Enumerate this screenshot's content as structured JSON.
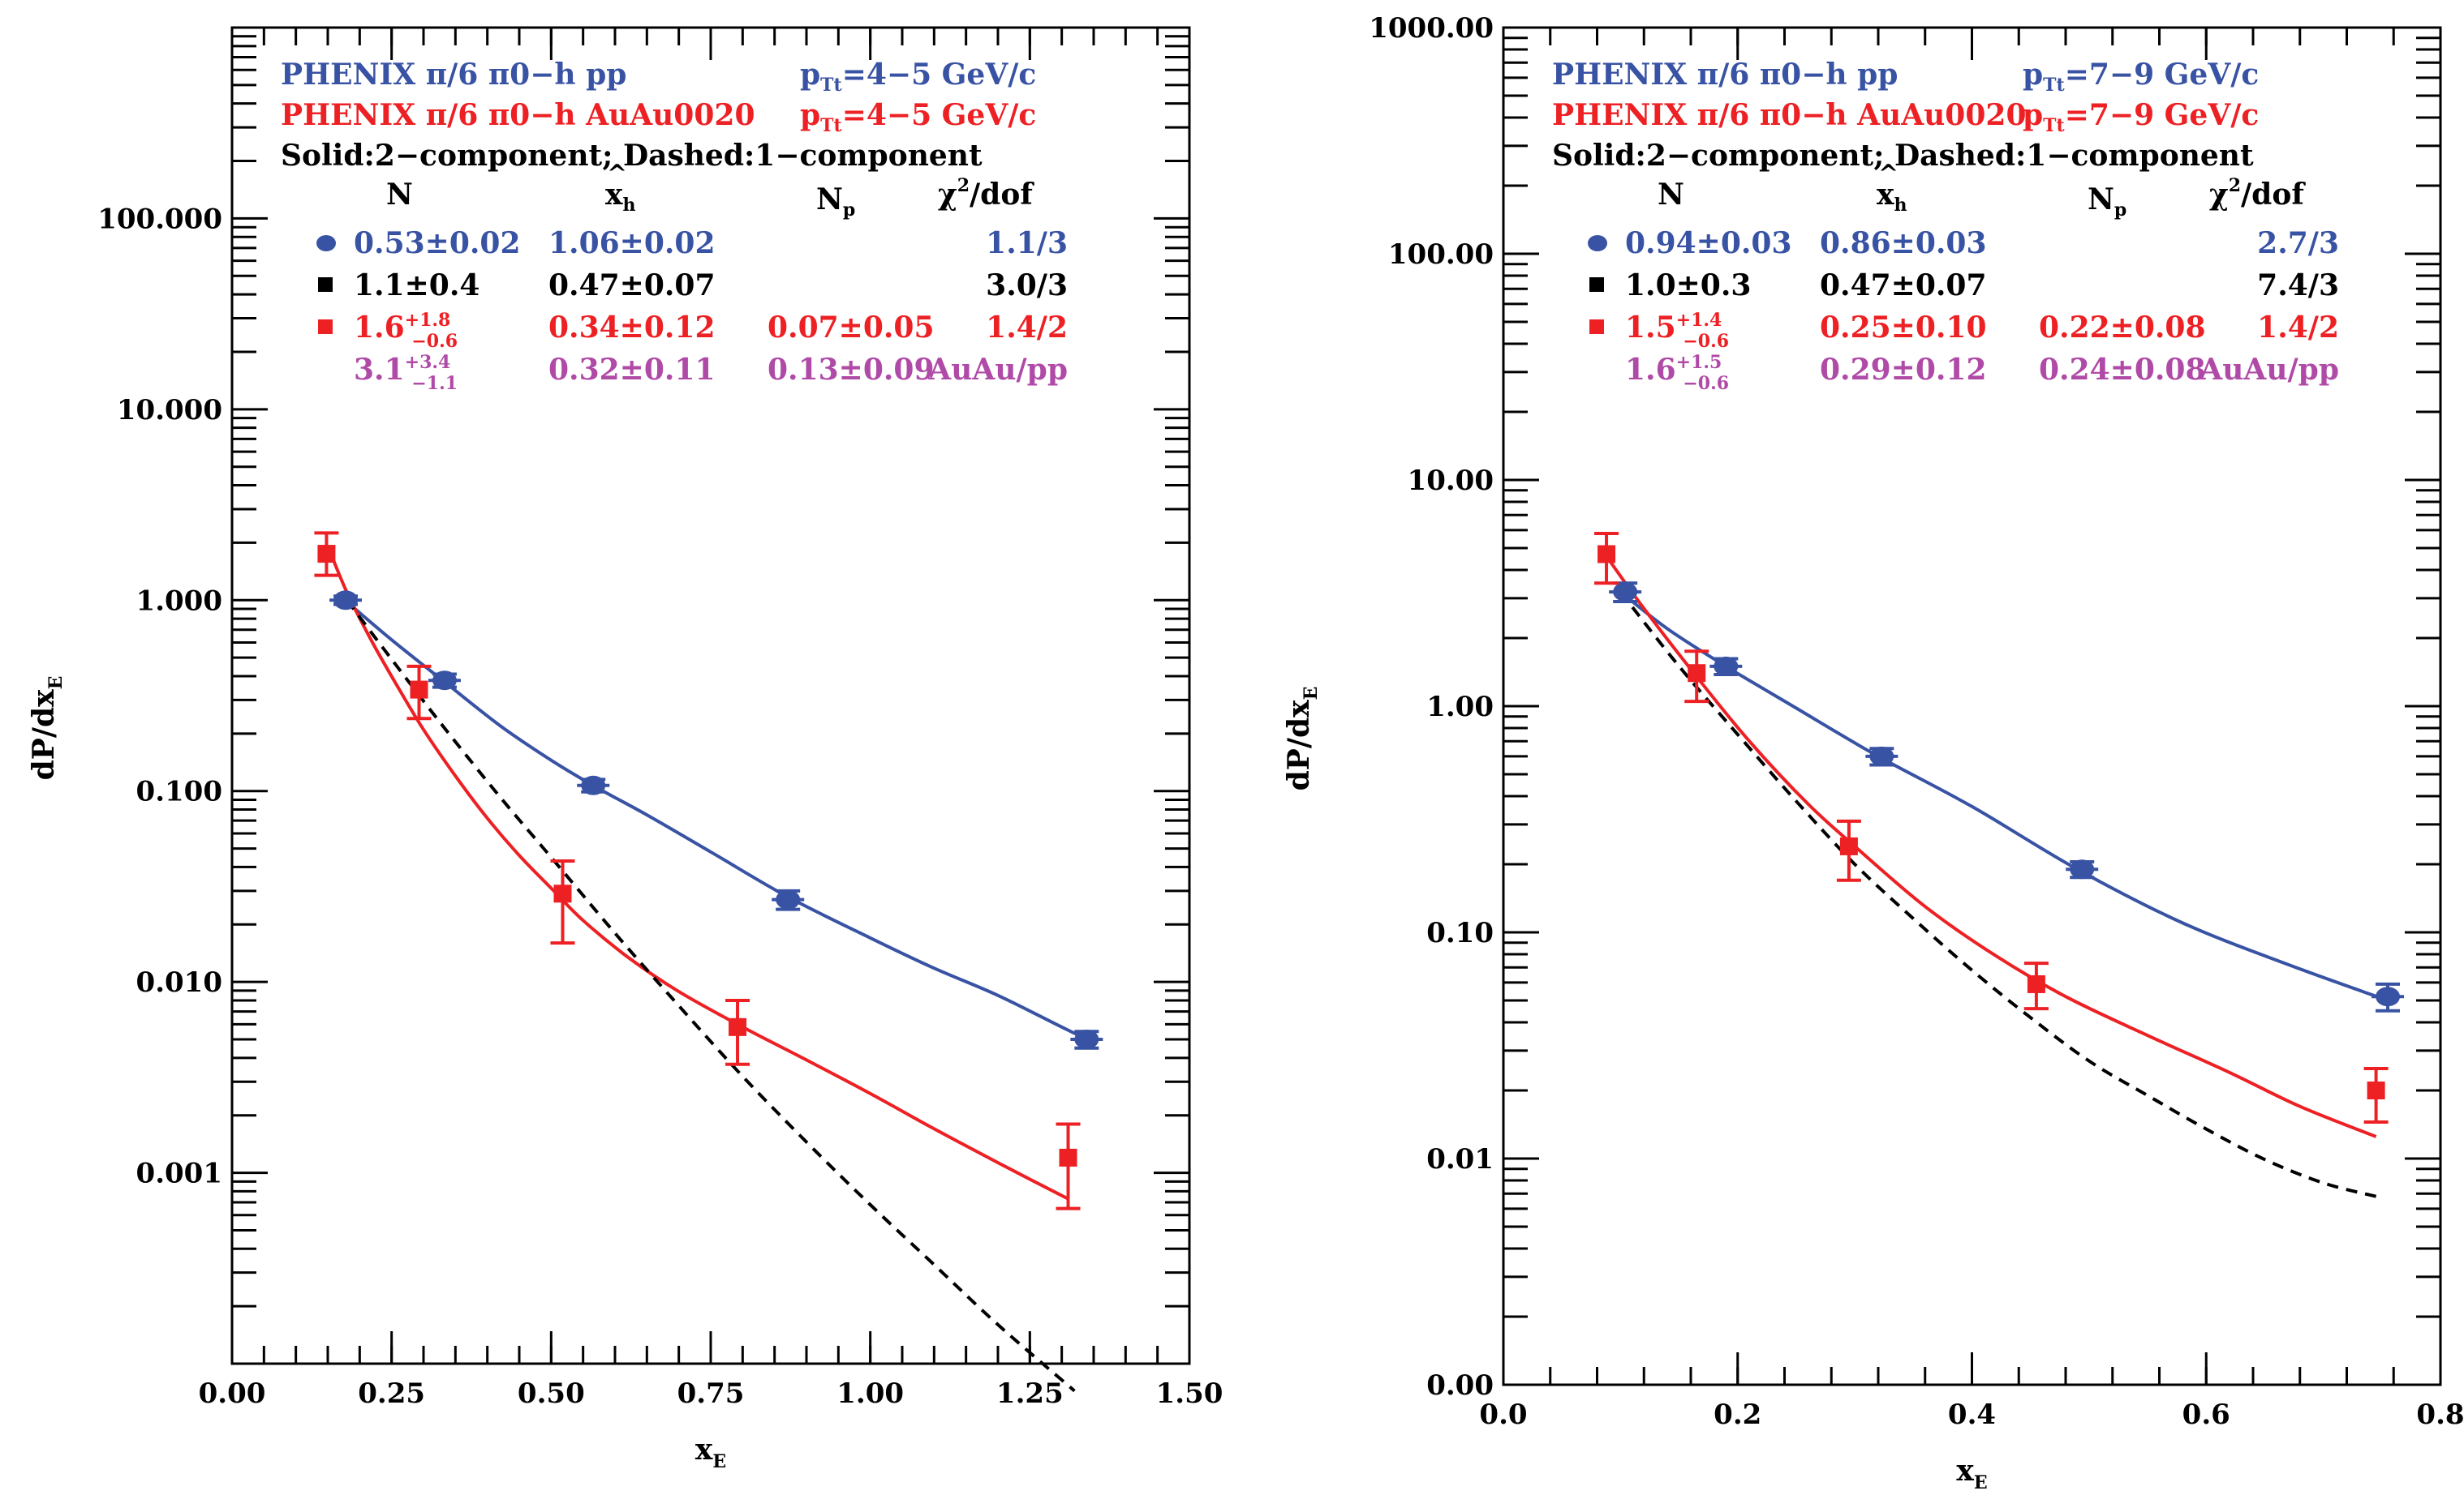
{
  "colors": {
    "pp": "#3953a4",
    "auau": "#ed2024",
    "ratio": "#b04aa7",
    "black": "#000000",
    "axis": "#000000"
  },
  "chart_data": [
    {
      "type": "scatter",
      "ylabel": "dP/dx",
      "ylabel_sub": "E",
      "xlabel": "x",
      "xlabel_sub": "E",
      "yscale": "log",
      "xlim": [
        0.0,
        1.5
      ],
      "ylim": [
        0.0001,
        1000
      ],
      "x_ticks": [
        0.0,
        0.25,
        0.5,
        0.75,
        1.0,
        1.25,
        1.5
      ],
      "x_tick_labels": [
        "0.00",
        "0.25",
        "0.50",
        "0.75",
        "1.00",
        "1.25",
        "1.50"
      ],
      "y_tick_values": [
        0.001,
        0.01,
        0.1,
        1,
        10,
        100
      ],
      "y_tick_labels": [
        "0.001",
        "0.010",
        "0.100",
        "1.000",
        "10.000",
        "100.000"
      ],
      "legend": {
        "pp_text": "PHENIX π/6 π0−h pp",
        "pp_ptt": "=4−5 GeV/c",
        "auau_text": "PHENIX π/6 π0−h AuAu0020",
        "auau_ptt": "=4−5 GeV/c",
        "ptt_main": "p",
        "ptt_sub": "Tt",
        "note": "Solid:2−component; Dashed:1−component",
        "col_headers": [
          "N",
          "x",
          "N",
          "χ",
          "/dof"
        ],
        "col_subs": [
          "h",
          "p"
        ],
        "chi_sup": "2",
        "rows": [
          {
            "N": "0.53±0.02",
            "x": "1.06±0.02",
            "Np": "",
            "chi": "1.1/3"
          },
          {
            "N": "1.1±0.4",
            "x": "0.47±0.07",
            "Np": "",
            "chi": "3.0/3"
          },
          {
            "N": "1.6",
            "N_sup": "+1.8",
            "N_sub": "−0.6",
            "x": "0.34±0.12",
            "Np": "0.07±0.05",
            "chi": "1.4/2"
          },
          {
            "N": "3.1",
            "N_sup": "+3.4",
            "N_sub": "−1.1",
            "x": "0.32±0.11",
            "Np": "0.13±0.09",
            "chi": "AuAu/pp"
          }
        ]
      },
      "series": [
        {
          "name": "pp",
          "x": [
            0.178,
            0.333,
            0.566,
            0.871,
            1.339
          ],
          "y": [
            1.0,
            0.38,
            0.107,
            0.027,
            0.005
          ],
          "yerr_lo": [
            0.05,
            0.03,
            0.008,
            0.003,
            0.0005
          ],
          "yerr_hi": [
            0.05,
            0.03,
            0.008,
            0.003,
            0.0005
          ]
        },
        {
          "name": "AuAu",
          "x": [
            0.148,
            0.293,
            0.518,
            0.792,
            1.31
          ],
          "y": [
            1.75,
            0.34,
            0.029,
            0.0058,
            0.0012
          ],
          "yerr_lo": [
            1.35,
            0.24,
            0.016,
            0.0037,
            0.00065
          ],
          "yerr_hi": [
            2.25,
            0.45,
            0.043,
            0.008,
            0.0018
          ]
        }
      ],
      "curves": [
        {
          "name": "pp-fit",
          "x": [
            0.18,
            0.25,
            0.33,
            0.42,
            0.5,
            0.57,
            0.65,
            0.75,
            0.87,
            1.0,
            1.1,
            1.2,
            1.3,
            1.34
          ],
          "y": [
            0.98,
            0.62,
            0.38,
            0.22,
            0.145,
            0.105,
            0.075,
            0.048,
            0.028,
            0.017,
            0.0118,
            0.0085,
            0.0058,
            0.005
          ]
        },
        {
          "name": "auau-2comp",
          "x": [
            0.155,
            0.18,
            0.22,
            0.26,
            0.3,
            0.35,
            0.4,
            0.45,
            0.5,
            0.55,
            0.62,
            0.7,
            0.8,
            0.9,
            1.0,
            1.1,
            1.2,
            1.31
          ],
          "y": [
            1.75,
            1.1,
            0.6,
            0.35,
            0.21,
            0.12,
            0.072,
            0.046,
            0.031,
            0.021,
            0.0135,
            0.0089,
            0.0058,
            0.0039,
            0.0026,
            0.0017,
            0.00113,
            0.00073
          ]
        },
        {
          "name": "auau-1comp",
          "x": [
            0.18,
            0.25,
            0.33,
            0.42,
            0.5,
            0.6,
            0.7,
            0.8,
            0.9,
            1.0,
            1.1,
            1.2,
            1.32
          ],
          "y": [
            1.0,
            0.49,
            0.22,
            0.093,
            0.045,
            0.018,
            0.0075,
            0.0032,
            0.00145,
            0.00068,
            0.00033,
            0.00016,
            7.2e-05
          ]
        }
      ]
    },
    {
      "type": "scatter",
      "ylabel": "dP/dx",
      "ylabel_sub": "E",
      "xlabel": "x",
      "xlabel_sub": "E",
      "yscale": "log",
      "xlim": [
        0.0,
        0.8
      ],
      "ylim": [
        0.001,
        1000
      ],
      "x_ticks": [
        0.0,
        0.2,
        0.4,
        0.6,
        0.8
      ],
      "x_tick_labels": [
        "0.0",
        "0.2",
        "0.4",
        "0.6",
        "0.8"
      ],
      "y_tick_values": [
        0.001,
        0.01,
        0.1,
        1,
        10,
        100,
        1000
      ],
      "y_tick_labels": [
        "0.00",
        "0.01",
        "0.10",
        "1.00",
        "10.00",
        "100.00",
        "1000.00"
      ],
      "legend": {
        "pp_text": "PHENIX π/6 π0−h pp",
        "pp_ptt": "=7−9 GeV/c",
        "auau_text": "PHENIX π/6 π0−h AuAu0020",
        "auau_ptt": "=7−9 GeV/c",
        "ptt_main": "p",
        "ptt_sub": "Tt",
        "note": "Solid:2−component; Dashed:1−component",
        "col_headers": [
          "N",
          "x",
          "N",
          "χ",
          "/dof"
        ],
        "col_subs": [
          "h",
          "p"
        ],
        "chi_sup": "2",
        "rows": [
          {
            "N": "0.94±0.03",
            "x": "0.86±0.03",
            "Np": "",
            "chi": "2.7/3"
          },
          {
            "N": "1.0±0.3",
            "x": "0.47±0.07",
            "Np": "",
            "chi": "7.4/3"
          },
          {
            "N": "1.5",
            "N_sup": "+1.4",
            "N_sub": "−0.6",
            "x": "0.25±0.10",
            "Np": "0.22±0.08",
            "chi": "1.4/2"
          },
          {
            "N": "1.6",
            "N_sup": "+1.5",
            "N_sub": "−0.6",
            "x": "0.29±0.12",
            "Np": "0.24±0.08",
            "chi": "AuAu/pp"
          }
        ]
      },
      "series": [
        {
          "name": "pp",
          "x": [
            0.104,
            0.19,
            0.323,
            0.494,
            0.755
          ],
          "y": [
            3.2,
            1.5,
            0.6,
            0.19,
            0.052
          ],
          "yerr_lo": [
            0.3,
            0.12,
            0.05,
            0.015,
            0.007
          ],
          "yerr_hi": [
            0.3,
            0.12,
            0.05,
            0.015,
            0.007
          ]
        },
        {
          "name": "AuAu",
          "x": [
            0.088,
            0.165,
            0.295,
            0.455,
            0.745
          ],
          "y": [
            4.7,
            1.4,
            0.24,
            0.059,
            0.02
          ],
          "yerr_lo": [
            3.5,
            1.05,
            0.17,
            0.046,
            0.0145
          ],
          "yerr_hi": [
            5.8,
            1.75,
            0.31,
            0.073,
            0.025
          ]
        }
      ],
      "curves": [
        {
          "name": "pp-fit",
          "x": [
            0.1,
            0.14,
            0.19,
            0.25,
            0.32,
            0.4,
            0.49,
            0.58,
            0.67,
            0.755
          ],
          "y": [
            3.2,
            2.2,
            1.5,
            0.98,
            0.6,
            0.36,
            0.19,
            0.11,
            0.072,
            0.05
          ]
        },
        {
          "name": "auau-2comp",
          "x": [
            0.088,
            0.12,
            0.165,
            0.21,
            0.26,
            0.3,
            0.36,
            0.42,
            0.48,
            0.55,
            0.62,
            0.68,
            0.745
          ],
          "y": [
            4.6,
            2.7,
            1.35,
            0.7,
            0.37,
            0.24,
            0.13,
            0.079,
            0.052,
            0.035,
            0.024,
            0.017,
            0.0125
          ]
        },
        {
          "name": "auau-1comp",
          "x": [
            0.1,
            0.15,
            0.2,
            0.25,
            0.3,
            0.35,
            0.4,
            0.45,
            0.5,
            0.55,
            0.6,
            0.65,
            0.7,
            0.745
          ],
          "y": [
            3.2,
            1.5,
            0.75,
            0.38,
            0.2,
            0.115,
            0.068,
            0.042,
            0.027,
            0.019,
            0.0135,
            0.0099,
            0.0078,
            0.0068
          ]
        }
      ]
    }
  ]
}
